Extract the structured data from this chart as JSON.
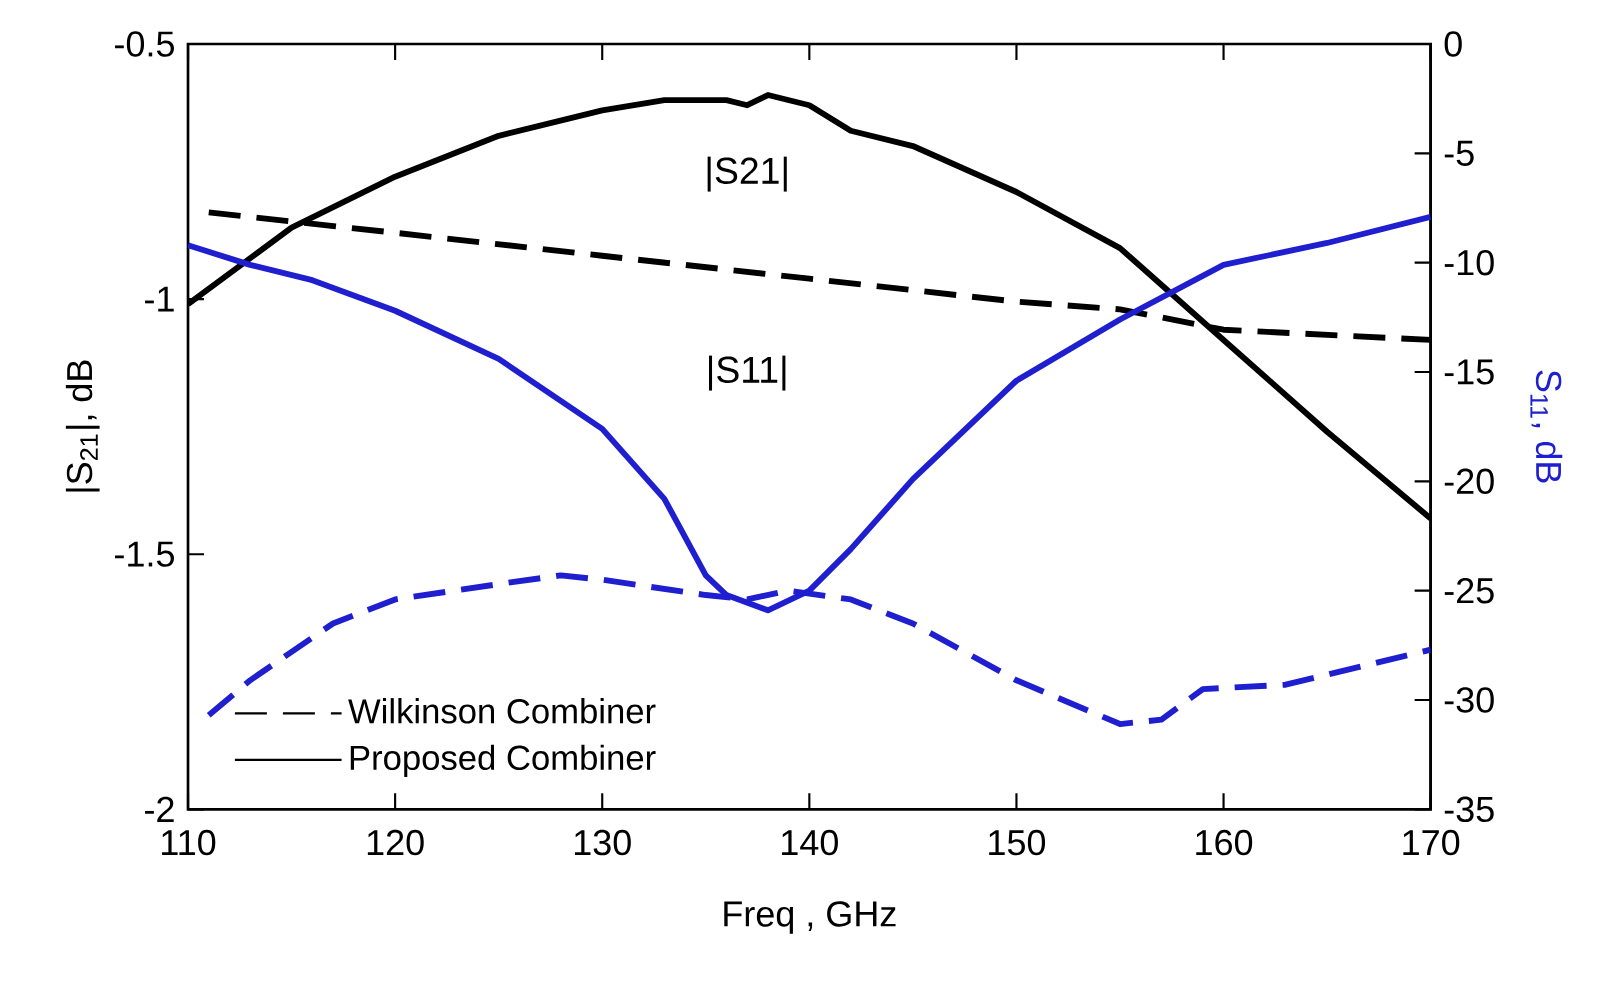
{
  "chart_data": {
    "type": "line",
    "xlabel": "Freq , GHz",
    "ylabel": "|S$_{21}$|,  dB",
    "y2label": "S$_{11}$, dB",
    "xlim": [
      110,
      170
    ],
    "xticks": [
      110,
      120,
      130,
      140,
      150,
      160,
      170
    ],
    "ylim": [
      -2,
      -0.5
    ],
    "yticks": [
      -2,
      -1.5,
      -1,
      -0.5
    ],
    "y2lim": [
      -35,
      0
    ],
    "y2ticks": [
      -35,
      -30,
      -25,
      -20,
      -15,
      -10,
      -5,
      0
    ],
    "legend": "bottom left",
    "grid": false,
    "marker": "none",
    "annotations": [
      "|S21|",
      "|S11|"
    ],
    "series": [
      {
        "name": "Wilkinson Combiner",
        "color": "#000000",
        "line_style": "dashed",
        "axis": "y",
        "x": [
          111,
          120,
          130,
          140,
          150,
          155,
          160,
          170
        ],
        "values": [
          -0.83,
          -0.87,
          -0.915,
          -0.96,
          -1.005,
          -1.02,
          -1.06,
          -1.08
        ]
      },
      {
        "name": "Proposed Combiner",
        "color": "#000000",
        "line_style": "solid",
        "axis": "y",
        "x": [
          110,
          115,
          120,
          125,
          130,
          133,
          136,
          137,
          138,
          140,
          142,
          145,
          150,
          155,
          160,
          165,
          170
        ],
        "values": [
          -1.01,
          -0.86,
          -0.76,
          -0.68,
          -0.63,
          -0.61,
          -0.61,
          -0.62,
          -0.6,
          -0.62,
          -0.67,
          -0.7,
          -0.79,
          -0.9,
          -1.08,
          -1.26,
          -1.43
        ]
      },
      {
        "color": "#1f1fd0",
        "line_style": "solid",
        "axis": "y2",
        "x": [
          110,
          113,
          116,
          120,
          125,
          130,
          133,
          135,
          136,
          138,
          140,
          142,
          145,
          150,
          155,
          160,
          165,
          170
        ],
        "values": [
          -9.2,
          -10.1,
          -10.8,
          -12.2,
          -14.4,
          -17.6,
          -20.8,
          -24.3,
          -25.2,
          -25.9,
          -25.0,
          -23.1,
          -19.9,
          -15.4,
          -12.6,
          -10.1,
          -9.1,
          -7.9
        ]
      },
      {
        "color": "#1f1fd0",
        "line_style": "dashed",
        "axis": "y2",
        "x": [
          111,
          113,
          117,
          120,
          125,
          128,
          130,
          135,
          137,
          139,
          142,
          145,
          150,
          155,
          157,
          159,
          163,
          170
        ],
        "values": [
          -30.7,
          -29.1,
          -26.5,
          -25.4,
          -24.7,
          -24.3,
          -24.5,
          -25.2,
          -25.4,
          -25.0,
          -25.4,
          -26.5,
          -29.1,
          -31.1,
          -30.9,
          -29.5,
          -29.3,
          -27.7
        ]
      }
    ]
  }
}
